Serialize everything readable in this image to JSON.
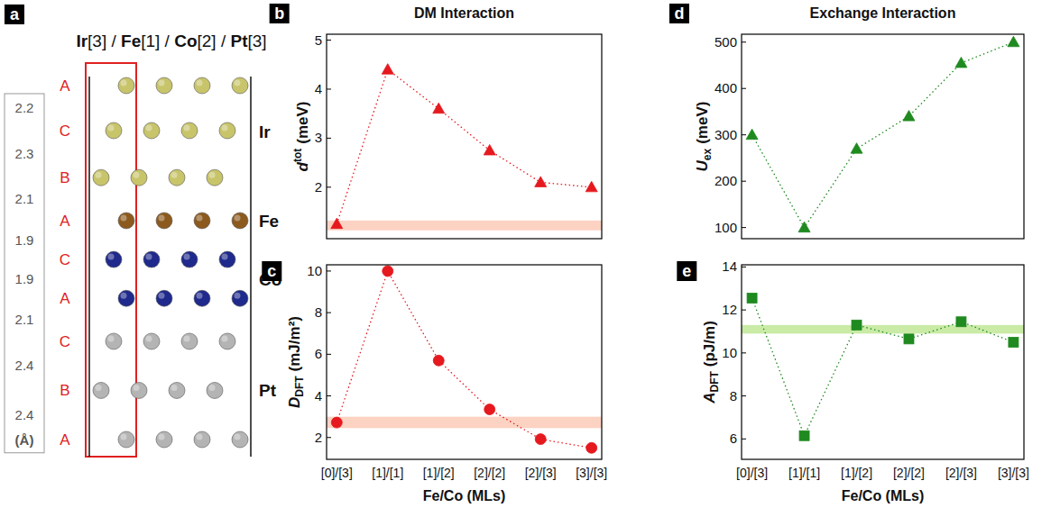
{
  "diagram": {
    "panel_label": "a",
    "title_parts": [
      {
        "text": "Ir",
        "bold": true
      },
      {
        "text": "[3] / ",
        "bold": false
      },
      {
        "text": "Fe",
        "bold": true
      },
      {
        "text": "[1] / ",
        "bold": false
      },
      {
        "text": "Co",
        "bold": true
      },
      {
        "text": "[2] / ",
        "bold": false
      },
      {
        "text": "Pt",
        "bold": true
      },
      {
        "text": "[3]",
        "bold": false
      }
    ],
    "layers": [
      {
        "stacking": "A",
        "element": "Ir"
      },
      {
        "stacking": "C",
        "element": "Ir"
      },
      {
        "stacking": "B",
        "element": "Ir"
      },
      {
        "stacking": "A",
        "element": "Fe"
      },
      {
        "stacking": "C",
        "element": "Co"
      },
      {
        "stacking": "A",
        "element": "Co"
      },
      {
        "stacking": "C",
        "element": "Pt"
      },
      {
        "stacking": "B",
        "element": "Pt"
      },
      {
        "stacking": "A",
        "element": "Pt"
      }
    ],
    "spacings": [
      2.2,
      2.3,
      2.1,
      1.9,
      1.9,
      2.1,
      2.4,
      2.4
    ],
    "spacing_unit": "(Å)",
    "element_colors": {
      "Ir": "#c8c46a",
      "Fe": "#8c5a1e",
      "Co": "#1f2a8c",
      "Pt": "#b4b4b4"
    }
  },
  "chart_data": [
    {
      "panel_label": "b",
      "type": "line",
      "title": "DM Interaction",
      "ylabel": {
        "symbol": "d",
        "sup": "tot",
        "unit": "(meV)"
      },
      "categories": [
        "[0]/[3]",
        "[1]/[1]",
        "[1]/[2]",
        "[2]/[2]",
        "[2]/[3]",
        "[3]/[3]"
      ],
      "values": [
        1.25,
        4.4,
        3.6,
        2.75,
        2.1,
        2.0
      ],
      "color": "#e5191e",
      "marker": "triangle",
      "line_style": "dotted",
      "ylim": [
        0.95,
        5.12
      ],
      "yticks": [
        2,
        3,
        4,
        5
      ],
      "tick_labels": "y",
      "band": {
        "range": [
          1.12,
          1.32
        ],
        "color": "#fcd2c2"
      }
    },
    {
      "panel_label": "c",
      "type": "line",
      "xlabel": "Fe/Co (MLs)",
      "ylabel": {
        "symbol": "D",
        "sub": "DFT",
        "unit": "(mJ/m²)"
      },
      "categories": [
        "[0]/[3]",
        "[1]/[1]",
        "[1]/[2]",
        "[2]/[2]",
        "[2]/[3]",
        "[3]/[3]"
      ],
      "values": [
        2.72,
        10.0,
        5.7,
        3.35,
        1.92,
        1.5
      ],
      "color": "#e5191e",
      "marker": "circle",
      "line_style": "dotted",
      "ylim": [
        0.95,
        10.3
      ],
      "yticks": [
        2,
        4,
        6,
        8,
        10
      ],
      "band": {
        "range": [
          2.45,
          3.0
        ],
        "color": "#fcd2c2"
      }
    },
    {
      "panel_label": "d",
      "type": "line",
      "title": "Exchange Interaction",
      "ylabel": {
        "symbol": "U",
        "sub": "ex",
        "unit": "(meV)"
      },
      "categories": [
        "[0]/[3]",
        "[1]/[1]",
        "[1]/[2]",
        "[2]/[2]",
        "[2]/[3]",
        "[3]/[3]"
      ],
      "values": [
        300,
        100,
        270,
        340,
        455,
        500
      ],
      "color": "#1f8a1f",
      "marker": "triangle",
      "line_style": "dotted",
      "ylim": [
        76,
        517
      ],
      "yticks": [
        100,
        200,
        300,
        400,
        500
      ],
      "tick_labels": "y"
    },
    {
      "panel_label": "e",
      "type": "line",
      "xlabel": "Fe/Co (MLs)",
      "ylabel": {
        "symbol": "A",
        "sub": "DFT",
        "unit": "(pJ/m)"
      },
      "categories": [
        "[0]/[3]",
        "[1]/[1]",
        "[1]/[2]",
        "[2]/[2]",
        "[2]/[3]",
        "[3]/[3]"
      ],
      "values": [
        12.55,
        6.15,
        11.3,
        10.65,
        11.45,
        10.5
      ],
      "color": "#1f8a1f",
      "marker": "square",
      "line_style": "dotted",
      "ylim": [
        5.05,
        14.1
      ],
      "yticks": [
        6,
        8,
        10,
        12,
        14
      ],
      "band": {
        "range": [
          10.9,
          11.3
        ],
        "color": "#c9eba6"
      }
    }
  ]
}
